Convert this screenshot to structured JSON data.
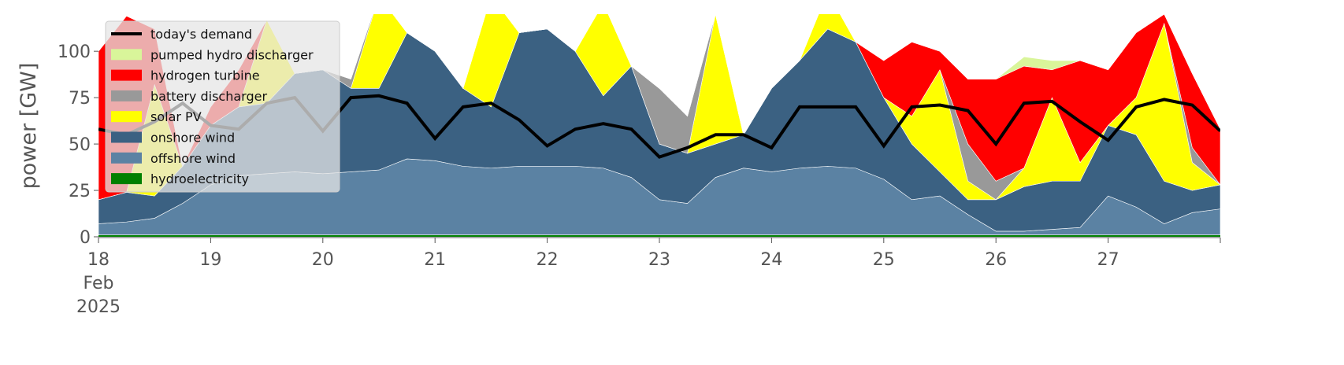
{
  "chart_data": {
    "type": "stacked_area",
    "ylabel": "power [GW]",
    "x": [
      18,
      18.25,
      18.5,
      18.75,
      19,
      19.25,
      19.5,
      19.75,
      20,
      20.25,
      20.5,
      20.75,
      21,
      21.25,
      21.5,
      21.75,
      22,
      22.25,
      22.5,
      22.75,
      23,
      23.25,
      23.5,
      23.75,
      24,
      24.25,
      24.5,
      24.75,
      25,
      25.25,
      25.5,
      25.75,
      26,
      26.25,
      26.5,
      26.75,
      27,
      27.25,
      27.5,
      27.75,
      28
    ],
    "xlim": [
      18,
      28
    ],
    "xticks": [
      {
        "value": 18,
        "label": "18 Feb 2025"
      },
      19,
      20,
      21,
      22,
      23,
      24,
      25,
      26,
      27
    ],
    "ylim": [
      0,
      120
    ],
    "yticks": [
      0,
      25,
      50,
      75,
      100
    ],
    "grid": false,
    "legend": "upper left",
    "series": [
      {
        "name": "hydroelectricity",
        "color": "#008000",
        "values": [
          1,
          1,
          1,
          1,
          1,
          1,
          1,
          1,
          1,
          1,
          1,
          1,
          1,
          1,
          1,
          1,
          1,
          1,
          1,
          1,
          1,
          1,
          1,
          1,
          1,
          1,
          1,
          1,
          1,
          1,
          1,
          1,
          1,
          1,
          1,
          1,
          1,
          1,
          1,
          1,
          1
        ]
      },
      {
        "name": "offshore wind",
        "color": "#5b82a3",
        "values": [
          6,
          7,
          9,
          17,
          27,
          32,
          33,
          34,
          33,
          34,
          35,
          41,
          40,
          37,
          36,
          37,
          37,
          37,
          36,
          31,
          19,
          17,
          31,
          36,
          34,
          36,
          37,
          36,
          30,
          19,
          21,
          11,
          2,
          2,
          3,
          4,
          21,
          15,
          6,
          12,
          14
        ]
      },
      {
        "name": "onshore wind",
        "color": "#3b6182",
        "values": [
          13,
          16,
          12,
          20,
          32,
          37,
          38,
          53,
          56,
          45,
          44,
          68,
          59,
          42,
          33,
          72,
          74,
          62,
          39,
          60,
          30,
          27,
          18,
          18,
          45,
          58,
          74,
          68,
          44,
          30,
          13,
          8,
          17,
          24,
          26,
          25,
          38,
          39,
          23,
          12,
          13
        ]
      },
      {
        "name": "solar PV",
        "color": "#ffff00",
        "values": [
          0,
          0,
          60,
          0,
          0,
          0,
          45,
          0,
          0,
          0,
          50,
          0,
          0,
          0,
          60,
          0,
          0,
          0,
          50,
          0,
          0,
          0,
          70,
          0,
          0,
          0,
          20,
          0,
          0,
          15,
          55,
          10,
          0,
          10,
          45,
          10,
          0,
          20,
          85,
          15,
          0
        ]
      },
      {
        "name": "battery discharger",
        "color": "#999999",
        "values": [
          0,
          0,
          0,
          0,
          0,
          0,
          0,
          0,
          0,
          5,
          0,
          0,
          0,
          0,
          0,
          0,
          0,
          0,
          0,
          0,
          30,
          20,
          0,
          0,
          0,
          0,
          0,
          0,
          0,
          0,
          0,
          20,
          10,
          0,
          0,
          0,
          0,
          0,
          0,
          8,
          0
        ]
      },
      {
        "name": "hydrogen turbine",
        "color": "#ff0000",
        "values": [
          80,
          95,
          30,
          0,
          10,
          20,
          0,
          0,
          0,
          0,
          0,
          0,
          0,
          0,
          0,
          0,
          0,
          0,
          0,
          0,
          0,
          0,
          0,
          0,
          0,
          0,
          0,
          0,
          20,
          40,
          10,
          35,
          55,
          55,
          15,
          55,
          30,
          35,
          5,
          40,
          30
        ]
      },
      {
        "name": "pumped hydro discharger",
        "color": "#d9f59a",
        "values": [
          0,
          0,
          0,
          0,
          0,
          0,
          0,
          0,
          0,
          0,
          0,
          0,
          0,
          0,
          0,
          0,
          0,
          0,
          0,
          0,
          0,
          0,
          0,
          0,
          0,
          0,
          0,
          0,
          0,
          0,
          0,
          0,
          0,
          5,
          5,
          0,
          0,
          0,
          0,
          0,
          0
        ]
      }
    ],
    "line": {
      "name": "today's demand",
      "color": "#000000",
      "values": [
        58,
        55,
        62,
        72,
        60,
        58,
        72,
        75,
        57,
        75,
        76,
        72,
        53,
        70,
        72,
        63,
        49,
        58,
        61,
        58,
        43,
        48,
        55,
        55,
        48,
        70,
        70,
        70,
        49,
        70,
        71,
        68,
        50,
        72,
        73,
        62,
        52,
        70,
        74,
        71,
        57
      ]
    }
  }
}
